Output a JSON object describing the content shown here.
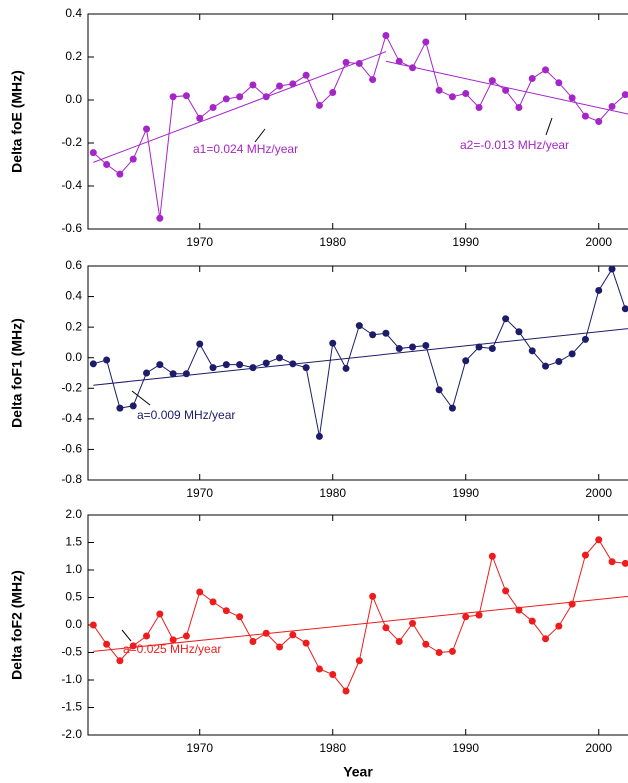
{
  "chart_data": [
    {
      "type": "line",
      "ylabel": "Delta foE (MHz)",
      "color": "#a526c8",
      "x": [
        1962,
        1963,
        1964,
        1965,
        1966,
        1967,
        1968,
        1969,
        1970,
        1971,
        1972,
        1973,
        1974,
        1975,
        1976,
        1977,
        1978,
        1979,
        1980,
        1981,
        1982,
        1983,
        1984,
        1985,
        1986,
        1987,
        1988,
        1989,
        1990,
        1991,
        1992,
        1993,
        1994,
        1995,
        1996,
        1997,
        1998,
        1999,
        2000,
        2001,
        2002
      ],
      "values": [
        -0.245,
        -0.3,
        -0.345,
        -0.275,
        -0.135,
        -0.55,
        0.015,
        0.02,
        -0.085,
        -0.035,
        0.005,
        0.015,
        0.07,
        0.015,
        0.065,
        0.075,
        0.115,
        -0.025,
        0.035,
        0.175,
        0.17,
        0.095,
        0.3,
        0.18,
        0.15,
        0.27,
        0.045,
        0.015,
        0.03,
        -0.035,
        0.09,
        0.045,
        -0.035,
        0.1,
        0.14,
        0.08,
        0.01,
        -0.075,
        -0.1,
        -0.03,
        0.025
      ],
      "fit_lines": [
        {
          "x": [
            1962,
            1984
          ],
          "values": [
            -0.29,
            0.225
          ]
        },
        {
          "x": [
            1984,
            2002.2
          ],
          "values": [
            0.18,
            -0.065
          ]
        }
      ],
      "annotations": [
        "a1=0.024 MHz/year",
        "a2=-0.013 MHz/year"
      ],
      "xlim": [
        1961.6,
        2002.2
      ],
      "xticks": [
        1970,
        1980,
        1990,
        2000
      ],
      "ylim": [
        -0.6,
        0.4
      ],
      "yticks": [
        0.4,
        0.2,
        {
          "value": 0,
          "label": "0.0"
        },
        -0.2,
        -0.4,
        -0.6
      ]
    },
    {
      "type": "line",
      "ylabel": "Delta foF1 (MHz)",
      "color": "#1c1c6a",
      "x": [
        1962,
        1963,
        1964,
        1965,
        1966,
        1967,
        1968,
        1969,
        1970,
        1971,
        1972,
        1973,
        1974,
        1975,
        1976,
        1977,
        1978,
        1979,
        1980,
        1981,
        1982,
        1983,
        1984,
        1985,
        1986,
        1987,
        1988,
        1989,
        1990,
        1991,
        1992,
        1993,
        1994,
        1995,
        1996,
        1997,
        1998,
        1999,
        2000,
        2001,
        2002
      ],
      "values": [
        -0.04,
        -0.015,
        -0.33,
        -0.315,
        -0.1,
        -0.045,
        -0.105,
        -0.105,
        0.09,
        -0.065,
        -0.045,
        -0.045,
        -0.065,
        -0.035,
        0.0,
        -0.04,
        -0.065,
        -0.515,
        0.095,
        -0.07,
        0.21,
        0.15,
        0.16,
        0.06,
        0.07,
        0.08,
        -0.21,
        -0.33,
        -0.02,
        0.07,
        0.06,
        0.255,
        0.17,
        0.045,
        -0.055,
        -0.025,
        0.025,
        0.12,
        0.44,
        0.58,
        0.32
      ],
      "fit_lines": [
        {
          "x": [
            1962,
            2002.2
          ],
          "values": [
            -0.18,
            0.19
          ]
        }
      ],
      "annotations": [
        "a=0.009 MHz/year"
      ],
      "xlim": [
        1961.6,
        2002.2
      ],
      "xticks": [
        1970,
        1980,
        1990,
        2000
      ],
      "ylim": [
        -0.8,
        0.6
      ],
      "yticks": [
        0.6,
        0.4,
        0.2,
        {
          "value": 0,
          "label": "0.0"
        },
        -0.2,
        -0.4,
        -0.6,
        -0.8
      ]
    },
    {
      "type": "line",
      "ylabel": "Delta foF2 (MHz)",
      "xlabel": "Year",
      "color": "#ee1c1c",
      "x": [
        1962,
        1963,
        1964,
        1965,
        1966,
        1967,
        1968,
        1969,
        1970,
        1971,
        1972,
        1973,
        1974,
        1975,
        1976,
        1977,
        1978,
        1979,
        1980,
        1981,
        1982,
        1983,
        1984,
        1985,
        1986,
        1987,
        1988,
        1989,
        1990,
        1991,
        1992,
        1993,
        1994,
        1995,
        1996,
        1997,
        1998,
        1999,
        2000,
        2001,
        2002
      ],
      "values": [
        0.0,
        -0.35,
        -0.65,
        -0.38,
        -0.2,
        0.2,
        -0.27,
        -0.2,
        0.6,
        0.42,
        0.26,
        0.15,
        -0.3,
        -0.15,
        -0.4,
        -0.18,
        -0.33,
        -0.8,
        -0.9,
        -1.2,
        -0.65,
        0.52,
        -0.05,
        -0.3,
        0.03,
        -0.35,
        -0.5,
        -0.48,
        0.15,
        0.18,
        1.25,
        0.62,
        0.27,
        0.07,
        -0.25,
        -0.02,
        0.38,
        1.27,
        1.55,
        1.15,
        1.12
      ],
      "fit_lines": [
        {
          "x": [
            1962,
            2002.2
          ],
          "values": [
            -0.48,
            0.52
          ]
        }
      ],
      "annotations": [
        "a=0.025 MHz/year"
      ],
      "xlim": [
        1961.6,
        2002.2
      ],
      "xticks": [
        1970,
        1980,
        1990,
        2000
      ],
      "ylim": [
        -2,
        2
      ],
      "yticks": [
        {
          "value": 2,
          "label": "2.0"
        },
        1.5,
        {
          "value": 1,
          "label": "1.0"
        },
        0.5,
        {
          "value": 0,
          "label": "0.0"
        },
        -0.5,
        {
          "value": -1,
          "label": "-1.0"
        },
        -1.5,
        {
          "value": -2,
          "label": "-2.0"
        }
      ]
    }
  ]
}
